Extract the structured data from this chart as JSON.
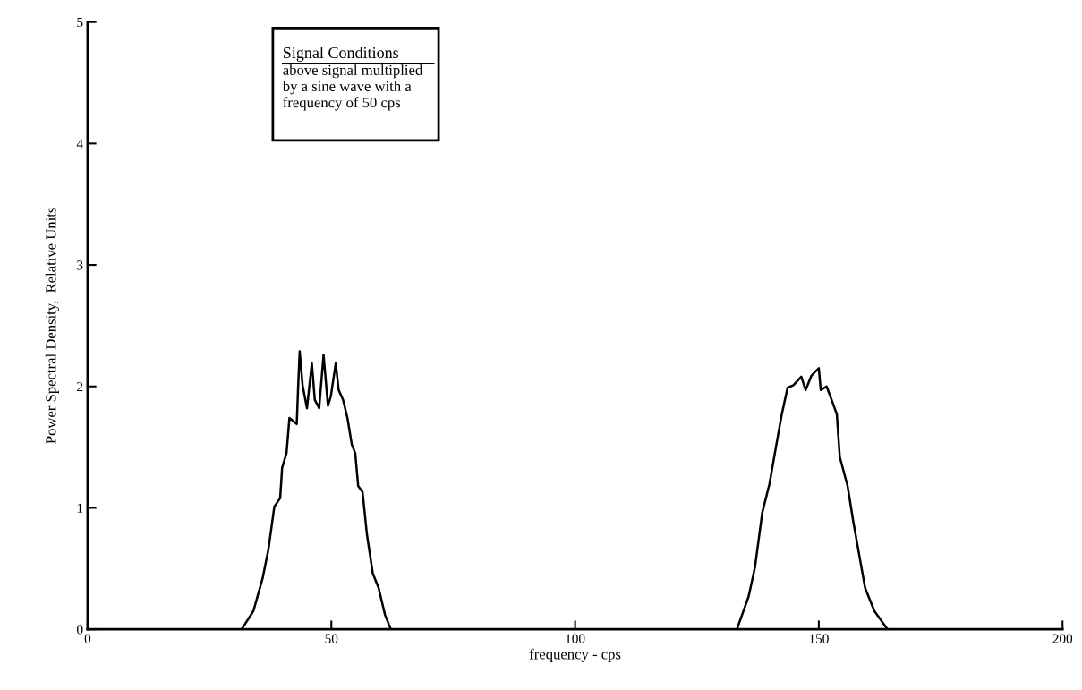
{
  "chart_data": {
    "type": "line",
    "xlabel": "frequency - cps",
    "ylabel": "Power Spectral Density,  Relative Units",
    "x": [
      0,
      31.6,
      34.0,
      35.9,
      37.1,
      38.3,
      39.5,
      39.9,
      40.8,
      41.4,
      42.9,
      43.2,
      43.5,
      44.1,
      45.0,
      46.0,
      46.6,
      47.5,
      48.4,
      49.3,
      49.9,
      50.9,
      51.5,
      52.4,
      53.3,
      54.2,
      54.9,
      55.5,
      56.4,
      57.3,
      58.5,
      59.7,
      61.0,
      62.2,
      133.2,
      135.6,
      136.9,
      138.4,
      139.9,
      141.2,
      142.4,
      143.6,
      144.8,
      146.4,
      147.3,
      148.5,
      150.0,
      150.4,
      151.6,
      152.8,
      153.7,
      154.3,
      155.9,
      157.1,
      158.3,
      159.5,
      161.4,
      164.1,
      200
    ],
    "series": [
      {
        "color": "#000000",
        "values": [
          0,
          0,
          0.15,
          0.42,
          0.66,
          1.01,
          1.08,
          1.33,
          1.45,
          1.74,
          1.69,
          2.01,
          2.29,
          2.01,
          1.82,
          2.19,
          1.89,
          1.82,
          2.26,
          1.84,
          1.92,
          2.19,
          1.97,
          1.89,
          1.74,
          1.52,
          1.45,
          1.18,
          1.13,
          0.78,
          0.46,
          0.34,
          0.12,
          0,
          0,
          0.27,
          0.51,
          0.96,
          1.2,
          1.5,
          1.77,
          1.99,
          2.01,
          2.08,
          1.97,
          2.09,
          2.15,
          1.97,
          2.0,
          1.87,
          1.77,
          1.42,
          1.18,
          0.88,
          0.61,
          0.34,
          0.15,
          0,
          0
        ]
      }
    ],
    "xlim": [
      0,
      200
    ],
    "ylim": [
      0,
      5
    ],
    "xticks": [
      0,
      50,
      100,
      150,
      200
    ],
    "yticks": [
      0,
      1,
      2,
      3,
      4,
      5
    ],
    "grid": false,
    "legend": false,
    "marker": "none",
    "line_style": "solid",
    "annotations": [
      "Signal Conditions",
      "above signal multiplied\nby a sine wave with a\nfrequency of 50 cps"
    ]
  }
}
